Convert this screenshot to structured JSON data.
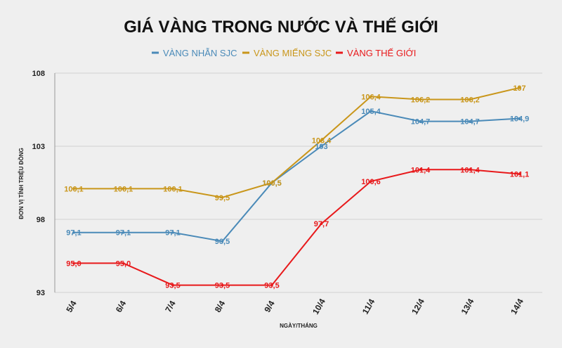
{
  "chart_data": {
    "type": "line",
    "title": "GIÁ VÀNG TRONG NƯỚC VÀ THẾ GIỚI",
    "xlabel": "NGÀY/THÁNG",
    "ylabel": "ĐƠN VỊ TÍNH TRIỆU ĐỒNG",
    "categories": [
      "5/4",
      "6/4",
      "7/4",
      "8/4",
      "9/4",
      "10/4",
      "11/4",
      "12/4",
      "13/4",
      "14/4"
    ],
    "ylim": [
      93,
      108
    ],
    "yticks": [
      "93",
      "98",
      "103",
      "108"
    ],
    "grid": true,
    "legend_position": "top-center",
    "series": [
      {
        "name": "VÀNG NHẪN SJC",
        "color": "#4a8ab8",
        "values": [
          97.1,
          97.1,
          97.1,
          96.5,
          100.5,
          103,
          105.4,
          104.7,
          104.7,
          104.9
        ],
        "labels": [
          "97,1",
          "97,1",
          "97,1",
          "96,5",
          "100,5",
          "103",
          "105,4",
          "104,7",
          "104,7",
          "104,9"
        ]
      },
      {
        "name": "VÀNG MIẾNG SJC",
        "color": "#c9961a",
        "values": [
          100.1,
          100.1,
          100.1,
          99.5,
          100.5,
          103.4,
          106.4,
          106.2,
          106.2,
          107
        ],
        "labels": [
          "100,1",
          "100,1",
          "100,1",
          "99,5",
          "100,5",
          "103,4",
          "106,4",
          "106,2",
          "106,2",
          "107"
        ]
      },
      {
        "name": "VÀNG THẾ GIỚI",
        "color": "#e8191b",
        "values": [
          95.0,
          95.0,
          93.5,
          93.5,
          93.5,
          97.7,
          100.6,
          101.4,
          101.4,
          101.1
        ],
        "labels": [
          "95,0",
          "95,0",
          "93,5",
          "93,5",
          "93,5",
          "97,7",
          "100,6",
          "101,4",
          "101,4",
          "101,1"
        ]
      }
    ]
  }
}
